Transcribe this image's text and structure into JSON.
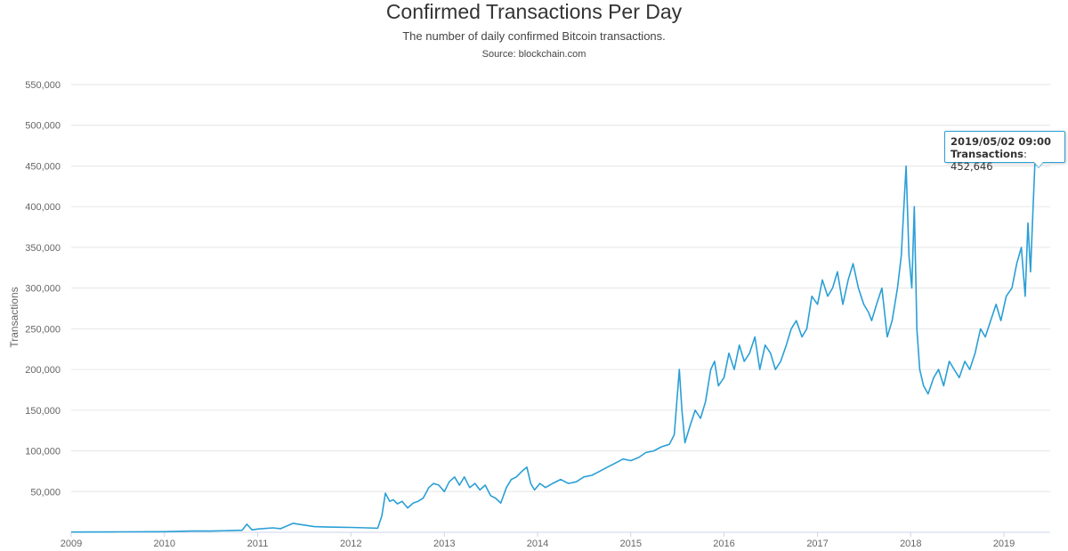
{
  "chart_data": {
    "type": "line",
    "title": "Confirmed Transactions Per Day",
    "subtitle": "The number of daily confirmed Bitcoin transactions.",
    "source": "Source: blockchain.com",
    "xlabel": "",
    "ylabel": "Transactions",
    "xlim": [
      "2009-01-01",
      "2019-07-01"
    ],
    "ylim": [
      0,
      550000
    ],
    "x_ticks": [
      "2009",
      "2010",
      "2011",
      "2012",
      "2013",
      "2014",
      "2015",
      "2016",
      "2017",
      "2018",
      "2019"
    ],
    "y_ticks": [
      "50,000",
      "100,000",
      "150,000",
      "200,000",
      "250,000",
      "300,000",
      "350,000",
      "400,000",
      "450,000",
      "500,000",
      "550,000"
    ],
    "y_tick_values": [
      50000,
      100000,
      150000,
      200000,
      250000,
      300000,
      350000,
      400000,
      450000,
      500000,
      550000
    ],
    "grid": true,
    "legend": "none",
    "color": "#2a9fd6",
    "series": [
      {
        "x": [
          "2009-01-01",
          "2009-07-01",
          "2010-01-01",
          "2010-04-15",
          "2010-07-01",
          "2010-11-01",
          "2010-11-20",
          "2010-12-10",
          "2011-01-01",
          "2011-03-01",
          "2011-04-01",
          "2011-05-20",
          "2011-06-10",
          "2011-07-10",
          "2011-08-10",
          "2011-10-01",
          "2012-01-01",
          "2012-03-01",
          "2012-04-15",
          "2012-05-01",
          "2012-05-15",
          "2012-06-01",
          "2012-06-15",
          "2012-07-01",
          "2012-07-20",
          "2012-08-10",
          "2012-09-01",
          "2012-09-20",
          "2012-10-10",
          "2012-11-01",
          "2012-11-20",
          "2012-12-10",
          "2013-01-01",
          "2013-01-20",
          "2013-02-10",
          "2013-03-01",
          "2013-03-20",
          "2013-04-10",
          "2013-05-01",
          "2013-05-20",
          "2013-06-10",
          "2013-07-01",
          "2013-07-20",
          "2013-08-10",
          "2013-09-01",
          "2013-09-20",
          "2013-10-10",
          "2013-11-01",
          "2013-11-20",
          "2013-12-05",
          "2013-12-20",
          "2014-01-10",
          "2014-02-01",
          "2014-03-01",
          "2014-04-01",
          "2014-05-01",
          "2014-06-01",
          "2014-07-01",
          "2014-08-01",
          "2014-09-01",
          "2014-10-01",
          "2014-11-01",
          "2014-12-01",
          "2015-01-01",
          "2015-02-01",
          "2015-03-01",
          "2015-04-01",
          "2015-05-01",
          "2015-06-01",
          "2015-06-20",
          "2015-07-10",
          "2015-07-20",
          "2015-08-01",
          "2015-08-20",
          "2015-09-10",
          "2015-10-01",
          "2015-10-20",
          "2015-11-10",
          "2015-11-25",
          "2015-12-10",
          "2016-01-01",
          "2016-01-20",
          "2016-02-10",
          "2016-03-01",
          "2016-03-20",
          "2016-04-10",
          "2016-05-01",
          "2016-05-20",
          "2016-06-10",
          "2016-07-01",
          "2016-07-20",
          "2016-08-10",
          "2016-09-01",
          "2016-09-20",
          "2016-10-10",
          "2016-11-01",
          "2016-11-20",
          "2016-12-10",
          "2017-01-01",
          "2017-01-20",
          "2017-02-10",
          "2017-03-01",
          "2017-03-20",
          "2017-04-10",
          "2017-05-01",
          "2017-05-20",
          "2017-06-10",
          "2017-07-01",
          "2017-07-20",
          "2017-08-01",
          "2017-08-20",
          "2017-09-10",
          "2017-10-01",
          "2017-10-20",
          "2017-11-10",
          "2017-11-25",
          "2017-12-05",
          "2017-12-14",
          "2017-12-25",
          "2018-01-05",
          "2018-01-15",
          "2018-01-25",
          "2018-02-05",
          "2018-02-20",
          "2018-03-10",
          "2018-04-01",
          "2018-04-20",
          "2018-05-10",
          "2018-06-01",
          "2018-06-20",
          "2018-07-10",
          "2018-08-01",
          "2018-08-20",
          "2018-09-10",
          "2018-10-01",
          "2018-10-20",
          "2018-11-10",
          "2018-12-01",
          "2018-12-20",
          "2019-01-10",
          "2019-02-01",
          "2019-02-20",
          "2019-03-10",
          "2019-03-25",
          "2019-04-05",
          "2019-04-15",
          "2019-04-25",
          "2019-05-02"
        ],
        "y": [
          300,
          500,
          800,
          1500,
          1500,
          2500,
          10000,
          3000,
          4000,
          5500,
          4500,
          11000,
          10000,
          8500,
          7000,
          6500,
          6000,
          5500,
          5000,
          20000,
          48000,
          38000,
          40000,
          35000,
          38000,
          30000,
          36000,
          38000,
          42000,
          55000,
          60000,
          58000,
          50000,
          62000,
          68000,
          58000,
          68000,
          55000,
          60000,
          52000,
          58000,
          45000,
          42000,
          36000,
          55000,
          65000,
          68000,
          75000,
          80000,
          60000,
          52000,
          60000,
          55000,
          60000,
          65000,
          60000,
          62000,
          68000,
          70000,
          75000,
          80000,
          85000,
          90000,
          88000,
          92000,
          98000,
          100000,
          105000,
          108000,
          120000,
          200000,
          150000,
          110000,
          130000,
          150000,
          140000,
          160000,
          200000,
          210000,
          180000,
          190000,
          220000,
          200000,
          230000,
          210000,
          220000,
          240000,
          200000,
          230000,
          220000,
          200000,
          210000,
          230000,
          250000,
          260000,
          240000,
          250000,
          290000,
          280000,
          310000,
          290000,
          300000,
          320000,
          280000,
          310000,
          330000,
          300000,
          280000,
          270000,
          260000,
          280000,
          300000,
          240000,
          260000,
          300000,
          340000,
          400000,
          450000,
          340000,
          300000,
          400000,
          250000,
          200000,
          180000,
          170000,
          190000,
          200000,
          180000,
          210000,
          200000,
          190000,
          210000,
          200000,
          220000,
          250000,
          240000,
          260000,
          280000,
          260000,
          290000,
          300000,
          330000,
          350000,
          290000,
          380000,
          320000,
          400000,
          452646
        ]
      }
    ],
    "tooltip": {
      "date": "2019/05/02 09:00",
      "label": "Transactions",
      "value": "452,646"
    }
  }
}
